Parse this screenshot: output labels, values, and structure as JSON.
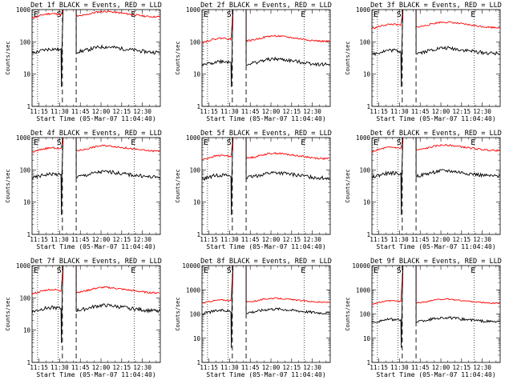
{
  "chart_data": {
    "type": "line",
    "y_scale": "log",
    "ylim": [
      1,
      1000
    ],
    "y_ticks": [
      "1",
      "10",
      "100",
      "1000"
    ],
    "x_ticks": [
      "11:15",
      "11:30",
      "11:45",
      "12:00",
      "12:15",
      "12:30"
    ],
    "x_tick_minutes": [
      0,
      15,
      30,
      45,
      60,
      75
    ],
    "xlim_minutes": [
      -5,
      88
    ],
    "xlabel": "Start Time (05-Mar-07 11:04:40)",
    "ylabel": "Counts/sec",
    "colors": {
      "events": "#000000",
      "lld": "#ff0000"
    },
    "panels": [
      {
        "title": "Det 1f BLACK = Events, RED = LLD",
        "ylim": [
          1,
          1000
        ],
        "y_ticks": [
          "1",
          "10",
          "100",
          "1000"
        ],
        "markers": {
          "E1": "E",
          "S": "S",
          "E2": "E"
        },
        "lld_base": 750,
        "events_base": 60,
        "seed": 11,
        "series": [
          {
            "name": "Events",
            "color": "#000000"
          },
          {
            "name": "LLD",
            "color": "#ff0000"
          }
        ]
      },
      {
        "title": "Det 2f BLACK = Events, RED = LLD",
        "ylim": [
          1,
          1000
        ],
        "y_ticks": [
          "1",
          "10",
          "100",
          "1000"
        ],
        "markers": {
          "E1": "E",
          "S": "S",
          "E2": "E"
        },
        "lld_base": 130,
        "events_base": 25,
        "seed": 22,
        "series": [
          {
            "name": "Events",
            "color": "#000000"
          },
          {
            "name": "LLD",
            "color": "#ff0000"
          }
        ]
      },
      {
        "title": "Det 3f BLACK = Events, RED = LLD",
        "ylim": [
          1,
          1000
        ],
        "y_ticks": [
          "1",
          "10",
          "100",
          "1000"
        ],
        "markers": {
          "E1": "E",
          "S": "S",
          "E2": "E"
        },
        "lld_base": 350,
        "events_base": 55,
        "seed": 33,
        "series": [
          {
            "name": "Events",
            "color": "#000000"
          },
          {
            "name": "LLD",
            "color": "#ff0000"
          }
        ]
      },
      {
        "title": "Det 4f BLACK = Events, RED = LLD",
        "ylim": [
          1,
          1000
        ],
        "y_ticks": [
          "1",
          "10",
          "100",
          "1000"
        ],
        "markers": {
          "E1": "E",
          "S": "S",
          "E2": "E"
        },
        "lld_base": 480,
        "events_base": 75,
        "seed": 44,
        "series": [
          {
            "name": "Events",
            "color": "#000000"
          },
          {
            "name": "LLD",
            "color": "#ff0000"
          }
        ]
      },
      {
        "title": "Det 5f BLACK = Events, RED = LLD",
        "ylim": [
          1,
          1000
        ],
        "y_ticks": [
          "1",
          "10",
          "100",
          "1000"
        ],
        "markers": {
          "E1": "E",
          "S": "S",
          "E2": "E"
        },
        "lld_base": 280,
        "events_base": 70,
        "seed": 55,
        "series": [
          {
            "name": "Events",
            "color": "#000000"
          },
          {
            "name": "LLD",
            "color": "#ff0000"
          }
        ]
      },
      {
        "title": "Det 6f BLACK = Events, RED = LLD",
        "ylim": [
          1,
          1000
        ],
        "y_ticks": [
          "1",
          "10",
          "100",
          "1000"
        ],
        "markers": {
          "E1": "E",
          "S": "S",
          "E2": "E"
        },
        "lld_base": 500,
        "events_base": 80,
        "seed": 66,
        "series": [
          {
            "name": "Events",
            "color": "#000000"
          },
          {
            "name": "LLD",
            "color": "#ff0000"
          }
        ]
      },
      {
        "title": "Det 7f BLACK = Events, RED = LLD",
        "ylim": [
          1,
          1000
        ],
        "y_ticks": [
          "1",
          "10",
          "100",
          "1000"
        ],
        "markers": {
          "E1": "E",
          "S": "S",
          "E2": "E"
        },
        "lld_base": 180,
        "events_base": 50,
        "seed": 77,
        "series": [
          {
            "name": "Events",
            "color": "#000000"
          },
          {
            "name": "LLD",
            "color": "#ff0000"
          }
        ]
      },
      {
        "title": "Det 8f BLACK = Events, RED = LLD",
        "ylim": [
          1,
          10000
        ],
        "y_ticks": [
          "1",
          "10",
          "100",
          "1000",
          "10000"
        ],
        "markers": {
          "E1": "E",
          "S": "S",
          "E2": "E"
        },
        "lld_base": 380,
        "events_base": 140,
        "seed": 88,
        "series": [
          {
            "name": "Events",
            "color": "#000000"
          },
          {
            "name": "LLD",
            "color": "#ff0000"
          }
        ]
      },
      {
        "title": "Det 9f BLACK = Events, RED = LLD",
        "ylim": [
          1,
          10000
        ],
        "y_ticks": [
          "1",
          "10",
          "100",
          "1000",
          "10000"
        ],
        "markers": {
          "E1": "E",
          "S": "S",
          "E2": "E"
        },
        "lld_base": 350,
        "events_base": 60,
        "seed": 99,
        "series": [
          {
            "name": "Events",
            "color": "#000000"
          },
          {
            "name": "LLD",
            "color": "#ff0000"
          }
        ]
      }
    ]
  }
}
